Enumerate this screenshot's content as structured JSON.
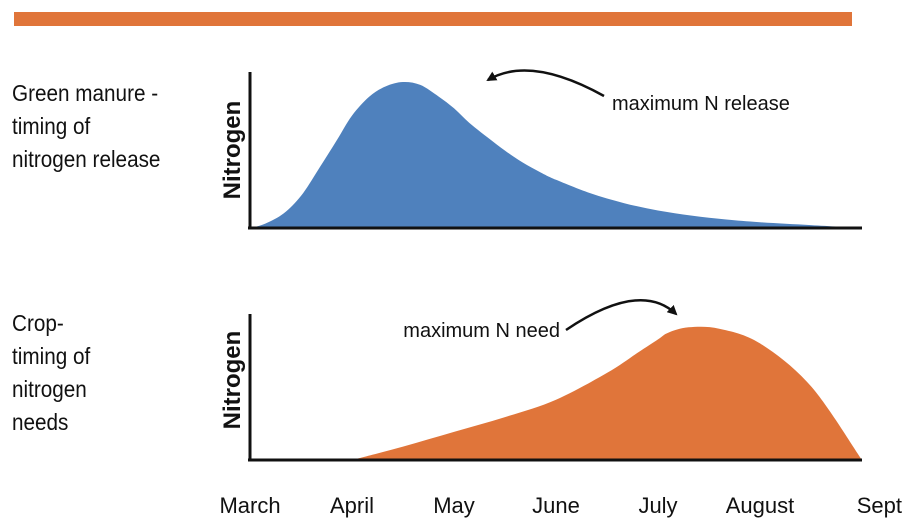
{
  "chart_data": {
    "type": "area",
    "months": [
      "March",
      "April",
      "May",
      "June",
      "July",
      "August",
      "Sept"
    ],
    "charts": [
      {
        "description": "Green manure -\ntiming of\nnitrogen release",
        "ylabel": "Nitrogen",
        "color": "#4f81bd",
        "annotation": "maximum N release",
        "peak_month": "May",
        "x": [
          0.0,
          0.15,
          0.33,
          0.5,
          0.67,
          0.85,
          1.0,
          1.17,
          1.33,
          1.5,
          1.67,
          1.85,
          2.0,
          2.15,
          2.33,
          2.5,
          2.67,
          2.85,
          3.0,
          3.33,
          3.67,
          4.0,
          4.33,
          4.67,
          5.0,
          5.5,
          6.0
        ],
        "y": [
          0.0,
          0.03,
          0.1,
          0.22,
          0.4,
          0.6,
          0.77,
          0.9,
          0.97,
          1.0,
          0.98,
          0.9,
          0.82,
          0.72,
          0.62,
          0.53,
          0.45,
          0.38,
          0.33,
          0.24,
          0.17,
          0.12,
          0.085,
          0.058,
          0.04,
          0.02,
          0.0
        ]
      },
      {
        "description": "Crop-\ntiming of\nnitrogen\nneeds",
        "ylabel": "Nitrogen",
        "color": "#e0753a",
        "annotation": "maximum N need",
        "peak_month": "July",
        "x": [
          1.0,
          1.5,
          2.0,
          2.5,
          3.0,
          3.5,
          3.8,
          4.0,
          4.1,
          4.3,
          4.6,
          5.0,
          5.5,
          6.0
        ],
        "y": [
          0.0,
          0.1,
          0.21,
          0.32,
          0.45,
          0.65,
          0.8,
          0.9,
          0.95,
          0.99,
          0.98,
          0.87,
          0.55,
          0.0
        ]
      }
    ]
  }
}
